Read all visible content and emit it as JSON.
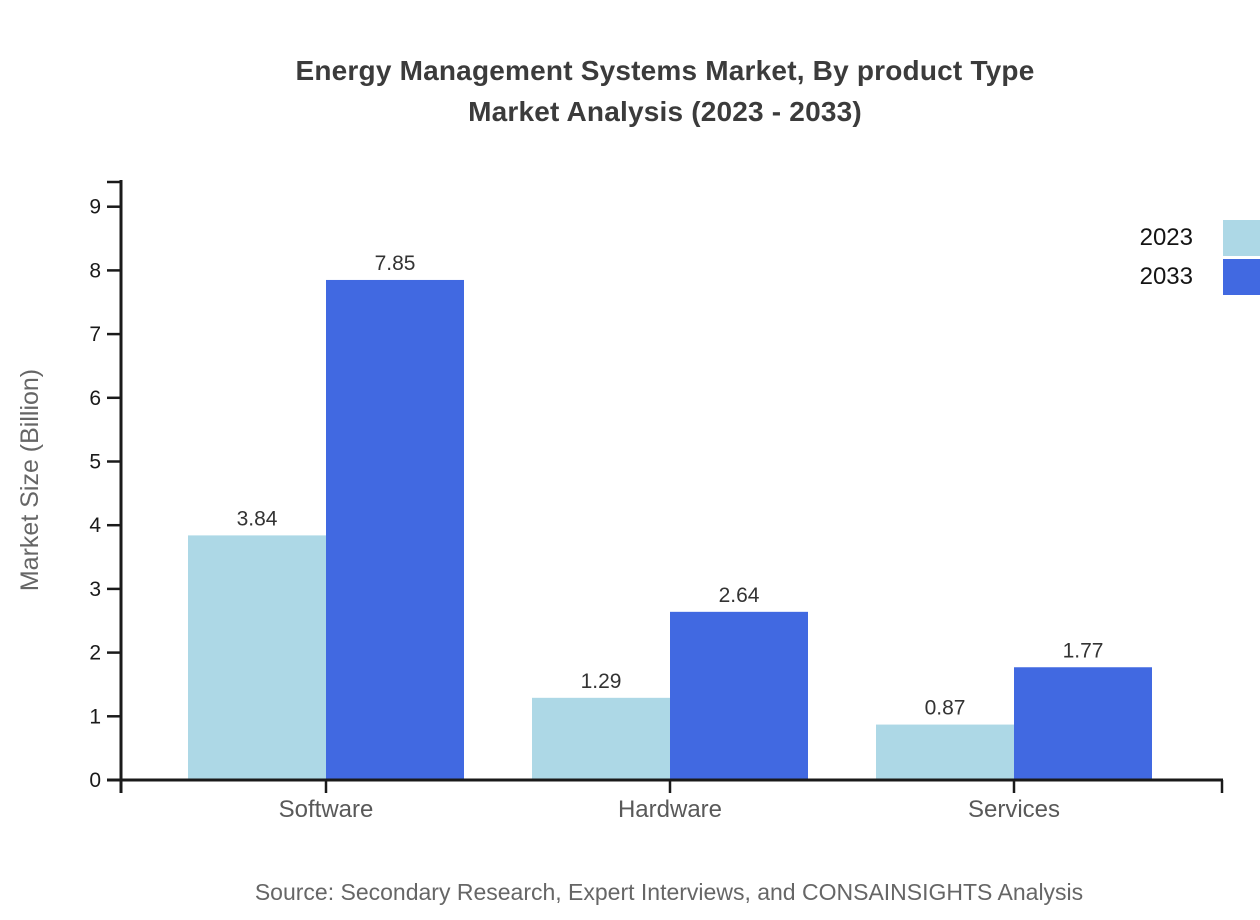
{
  "title_line1": "Energy Management Systems Market, By product Type",
  "title_line2": "Market Analysis (2023 - 2033)",
  "source": "Source: Secondary Research, Expert Interviews, and CONSAINSIGHTS Analysis",
  "colors": {
    "series_2023": "#ADD8E6",
    "series_2033": "#4169E1",
    "axis": "#1a1a1a",
    "title_text": "#3b3b3b",
    "value_text": "#333333",
    "category_text": "#595959",
    "muted_text": "#666666",
    "legend_text": "#141414",
    "background": "#ffffff"
  },
  "chart_data": {
    "type": "bar",
    "title": "Energy Management Systems Market, By product Type Market Analysis (2023 - 2033)",
    "categories": [
      "Software",
      "Hardware",
      "Services"
    ],
    "series": [
      {
        "name": "2023",
        "color_key": "series_2023",
        "values": [
          3.84,
          1.29,
          0.87
        ]
      },
      {
        "name": "2033",
        "color_key": "series_2033",
        "values": [
          7.85,
          2.64,
          1.77
        ]
      }
    ],
    "xlabel": "",
    "ylabel": "Market Size (Billion)",
    "ylim": [
      0,
      9
    ],
    "yticks": [
      0,
      1,
      2,
      3,
      4,
      5,
      6,
      7,
      8,
      9
    ],
    "grid": false,
    "legend_position": "top-right",
    "value_labels": true,
    "value_label_format": "2dp"
  }
}
